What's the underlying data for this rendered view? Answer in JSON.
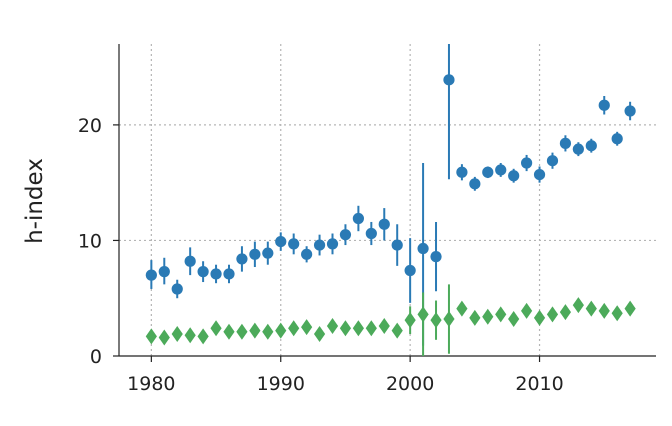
{
  "chart_data": {
    "type": "scatter",
    "title": "",
    "xlabel": "",
    "ylabel": "h-index",
    "xlim": [
      1977.5,
      2019
    ],
    "ylim": [
      0,
      27
    ],
    "xticks": [
      "1980",
      "1990",
      "2000",
      "2010"
    ],
    "yticks": [
      "0",
      "10",
      "20"
    ],
    "grid": true,
    "grid_style": "dotted",
    "legend": "none",
    "x": [
      1980,
      1981,
      1982,
      1983,
      1984,
      1985,
      1986,
      1987,
      1988,
      1989,
      1990,
      1991,
      1992,
      1993,
      1994,
      1995,
      1996,
      1997,
      1998,
      1999,
      2000,
      2001,
      2002,
      2003,
      2004,
      2005,
      2006,
      2007,
      2008,
      2009,
      2010,
      2011,
      2012,
      2013,
      2014,
      2015,
      2016,
      2017
    ],
    "series": [
      {
        "marker": "circle",
        "color": "#2a7ab5",
        "values": [
          7.0,
          7.3,
          5.8,
          8.2,
          7.3,
          7.1,
          7.1,
          8.4,
          8.8,
          8.9,
          9.9,
          9.7,
          8.8,
          9.6,
          9.7,
          10.5,
          11.9,
          10.6,
          11.4,
          9.6,
          7.4,
          9.3,
          8.6,
          23.9,
          15.9,
          14.9,
          15.9,
          16.1,
          15.6,
          16.7,
          15.7,
          16.9,
          18.4,
          17.9,
          18.2,
          21.7,
          18.8,
          21.2
        ],
        "err_low": [
          1.2,
          1.1,
          0.8,
          1.2,
          0.9,
          0.8,
          0.8,
          1.1,
          1.1,
          1.0,
          0.8,
          0.9,
          0.7,
          0.9,
          0.9,
          0.9,
          1.1,
          1.0,
          1.4,
          1.8,
          2.8,
          8.4,
          3.0,
          8.6,
          0.7,
          0.6,
          0.5,
          0.6,
          0.6,
          0.7,
          0.7,
          0.7,
          0.7,
          0.6,
          0.6,
          0.8,
          0.6,
          0.8
        ],
        "err_high": [
          1.3,
          1.2,
          0.8,
          1.2,
          0.9,
          0.8,
          0.8,
          1.1,
          1.1,
          1.0,
          0.8,
          0.9,
          0.7,
          0.9,
          0.9,
          0.9,
          1.1,
          1.0,
          1.4,
          1.8,
          2.8,
          7.4,
          3.0,
          3.2,
          0.7,
          0.6,
          0.5,
          0.6,
          0.6,
          0.7,
          0.7,
          0.7,
          0.7,
          0.6,
          0.6,
          0.8,
          0.6,
          0.8
        ]
      },
      {
        "marker": "diamond",
        "color": "#4caa5a",
        "values": [
          1.7,
          1.6,
          1.9,
          1.8,
          1.7,
          2.4,
          2.1,
          2.1,
          2.2,
          2.1,
          2.2,
          2.4,
          2.5,
          1.9,
          2.6,
          2.4,
          2.4,
          2.4,
          2.6,
          2.2,
          3.1,
          3.6,
          3.1,
          3.2,
          4.1,
          3.3,
          3.4,
          3.6,
          3.2,
          3.9,
          3.3,
          3.6,
          3.8,
          4.4,
          4.1,
          3.9,
          3.7,
          4.1
        ],
        "err_low": [
          0.3,
          0.3,
          0.3,
          0.3,
          0.3,
          0.3,
          0.3,
          0.3,
          0.3,
          0.3,
          0.3,
          0.3,
          0.3,
          0.3,
          0.3,
          0.3,
          0.3,
          0.3,
          0.3,
          0.3,
          1.2,
          3.6,
          1.7,
          3.0,
          0.4,
          0.3,
          0.3,
          0.3,
          0.3,
          0.3,
          0.3,
          0.3,
          0.3,
          0.3,
          0.3,
          0.3,
          0.3,
          0.3
        ],
        "err_high": [
          0.3,
          0.3,
          0.3,
          0.3,
          0.3,
          0.3,
          0.3,
          0.3,
          0.3,
          0.3,
          0.3,
          0.3,
          0.3,
          0.3,
          0.3,
          0.3,
          0.3,
          0.3,
          0.3,
          0.3,
          1.2,
          1.9,
          1.7,
          3.0,
          0.4,
          0.3,
          0.3,
          0.3,
          0.3,
          0.3,
          0.3,
          0.3,
          0.3,
          0.3,
          0.3,
          0.3,
          0.3,
          0.3
        ]
      }
    ]
  }
}
